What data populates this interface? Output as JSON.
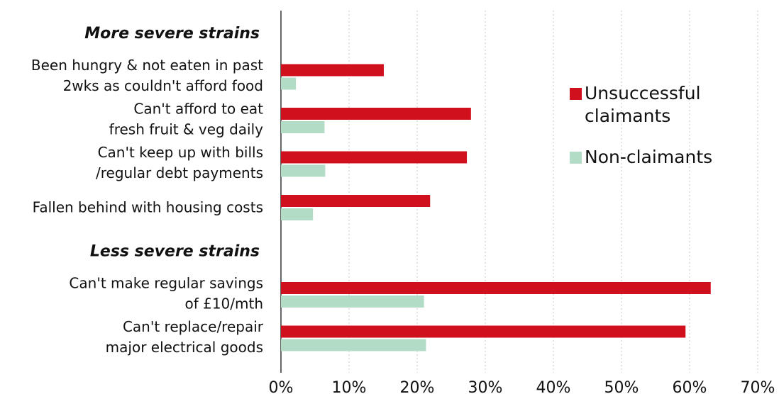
{
  "chart_data": {
    "type": "hbar",
    "categories": [
      [
        "More severe strains"
      ],
      [
        "Been hungry & not eaten in past",
        "2wks as couldn't afford food"
      ],
      [
        "Can't afford to eat",
        "fresh fruit & veg daily"
      ],
      [
        "Can't keep up with bills",
        "/regular debt payments"
      ],
      [
        "Fallen behind with housing costs"
      ],
      [
        "Less severe strains"
      ],
      [
        "Can't make regular savings",
        "of £10/mth"
      ],
      [
        "Can't replace/repair",
        "major electrical goods"
      ]
    ],
    "series": [
      {
        "name": "Unsuccessful claimants",
        "color": "#d0101c",
        "values": [
          null,
          15.1,
          27.9,
          27.3,
          21.9,
          null,
          63.1,
          59.4
        ]
      },
      {
        "name": "Non-claimants",
        "color": "#b3dcc6",
        "values": [
          null,
          2.2,
          6.4,
          6.5,
          4.7,
          null,
          21.0,
          21.3
        ]
      }
    ],
    "xlim": [
      0,
      70
    ],
    "xticks": [
      {
        "value": 0,
        "label": "0%"
      },
      {
        "value": 10,
        "label": "10%"
      },
      {
        "value": 20,
        "label": "20%"
      },
      {
        "value": 30,
        "label": "30%"
      },
      {
        "value": 40,
        "label": "40%"
      },
      {
        "value": 50,
        "label": "50%"
      },
      {
        "value": 60,
        "label": "60%"
      },
      {
        "value": 70,
        "label": "70%"
      }
    ],
    "grid": true,
    "legend": "right"
  }
}
